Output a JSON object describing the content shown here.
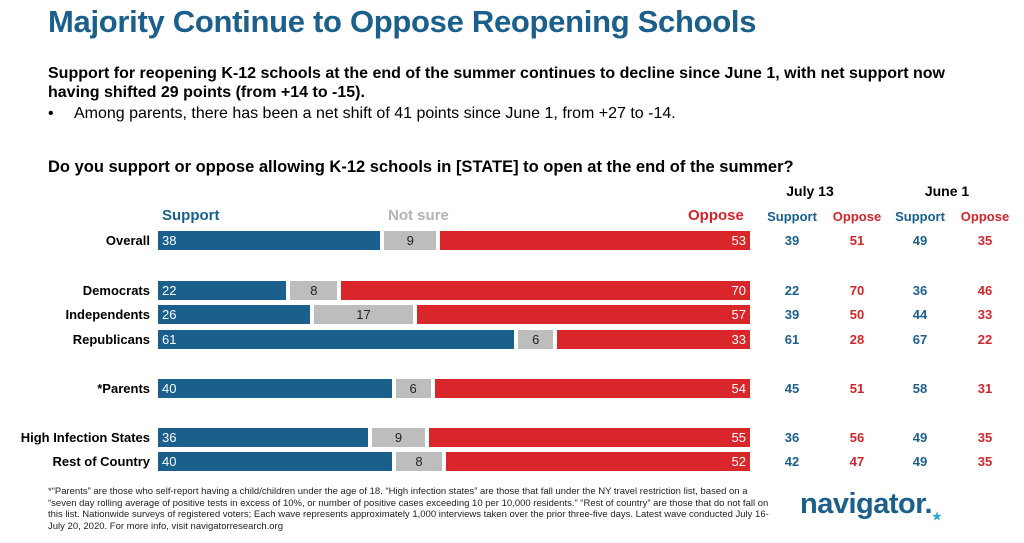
{
  "title": "Majority Continue to Oppose Reopening Schools",
  "subtitle": "Support for reopening K-12 schools at the end of the summer continues to decline since June 1, with net support now having shifted 29 points (from +14 to -15).",
  "bullet": "Among parents, there has been a net shift of 41 points since June 1, from +27 to -14.",
  "bullet_mark": "•",
  "question": "Do you support or oppose allowing K-12 schools in [STATE] to open at the end of the summer?",
  "legend": {
    "support": "Support",
    "not_sure": "Not sure",
    "oppose": "Oppose"
  },
  "waves": {
    "july": "July 13",
    "june": "June 1"
  },
  "col_heads": {
    "support": "Support",
    "oppose": "Oppose"
  },
  "colors": {
    "support": "#1b5f8c",
    "not_sure": "#bdbdbd",
    "oppose": "#d9262b"
  },
  "chart_data": {
    "type": "bar",
    "stacked": true,
    "orientation": "horizontal",
    "categories": [
      "Overall",
      "Democrats",
      "Independents",
      "Republicans",
      "*Parents",
      "High Infection States",
      "Rest of Country"
    ],
    "series": [
      {
        "name": "Support",
        "values": [
          38,
          22,
          26,
          61,
          40,
          36,
          40
        ]
      },
      {
        "name": "Not sure",
        "values": [
          9,
          8,
          17,
          6,
          6,
          9,
          8
        ]
      },
      {
        "name": "Oppose",
        "values": [
          53,
          70,
          57,
          33,
          54,
          55,
          52
        ]
      }
    ],
    "comparison": {
      "july_13": {
        "support": [
          39,
          22,
          39,
          61,
          45,
          36,
          42
        ],
        "oppose": [
          51,
          70,
          50,
          28,
          51,
          56,
          47
        ]
      },
      "june_1": {
        "support": [
          49,
          36,
          44,
          67,
          58,
          49,
          49
        ],
        "oppose": [
          35,
          46,
          33,
          22,
          31,
          35,
          35
        ]
      }
    }
  },
  "footnote": "*“Parents” are those who self-report having a child/children under the age of 18. “High infection states” are those that fall under the NY travel restriction list, based on a “seven day rolling average of positive tests in excess of 10%, or number of positive cases exceeding 10 per 10,000 residents.” “Rest of country” are those that do not fall on this list. Nationwide surveys of registered voters; Each wave represents approximately 1,000 interviews taken over the prior three-five days. Latest wave conducted July 16-July 20, 2020. For more info, visit navigatorresearch.org",
  "logo": {
    "text": "navigator",
    "mark": "."
  }
}
